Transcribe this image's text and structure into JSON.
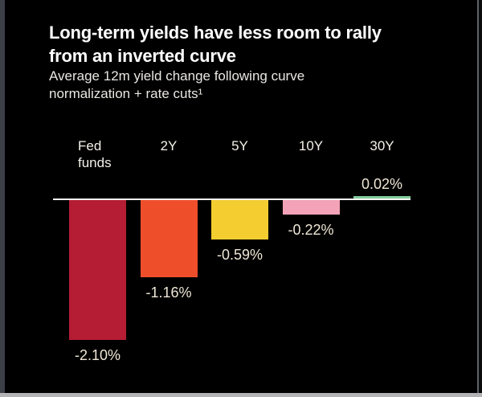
{
  "header": {
    "title_line1": "Long-term yields have less room to rally",
    "title_line2": "from an inverted curve",
    "subtitle_line1": "Average 12m yield change following curve",
    "subtitle_line2": "normalization + rate cuts¹"
  },
  "chart_data": {
    "type": "bar",
    "title": "Long-term yields have less room to rally from an inverted curve",
    "subtitle": "Average 12m yield change following curve normalization + rate cuts¹",
    "categories": [
      "Fed funds",
      "2Y",
      "5Y",
      "10Y",
      "30Y"
    ],
    "values": [
      -2.1,
      -1.16,
      -0.59,
      -0.22,
      0.02
    ],
    "value_labels": [
      "-2.10%",
      "-1.16%",
      "-0.59%",
      "-0.22%",
      "0.02%"
    ],
    "bar_colors": [
      "#b41d33",
      "#ef4e2b",
      "#f4cd31",
      "#f3a2b7",
      "#82cc9c"
    ],
    "unit": "%",
    "baseline": 0,
    "baseline_color": "#f7f5f0",
    "ylim": [
      -2.3,
      0.3
    ],
    "grid": false,
    "legend": false,
    "orientation": "vertical",
    "value_label_position": "beyond-bar-end"
  },
  "colors": {
    "background": "#000000",
    "title_text": "#ffffff",
    "subtitle_text": "#e9e7e2",
    "category_text": "#f4f1ea",
    "value_text": "#efe7d6",
    "frame_left": "#3c3f46",
    "frame_right": "#5d6066",
    "frame_bottom": "#b3b3b6"
  }
}
